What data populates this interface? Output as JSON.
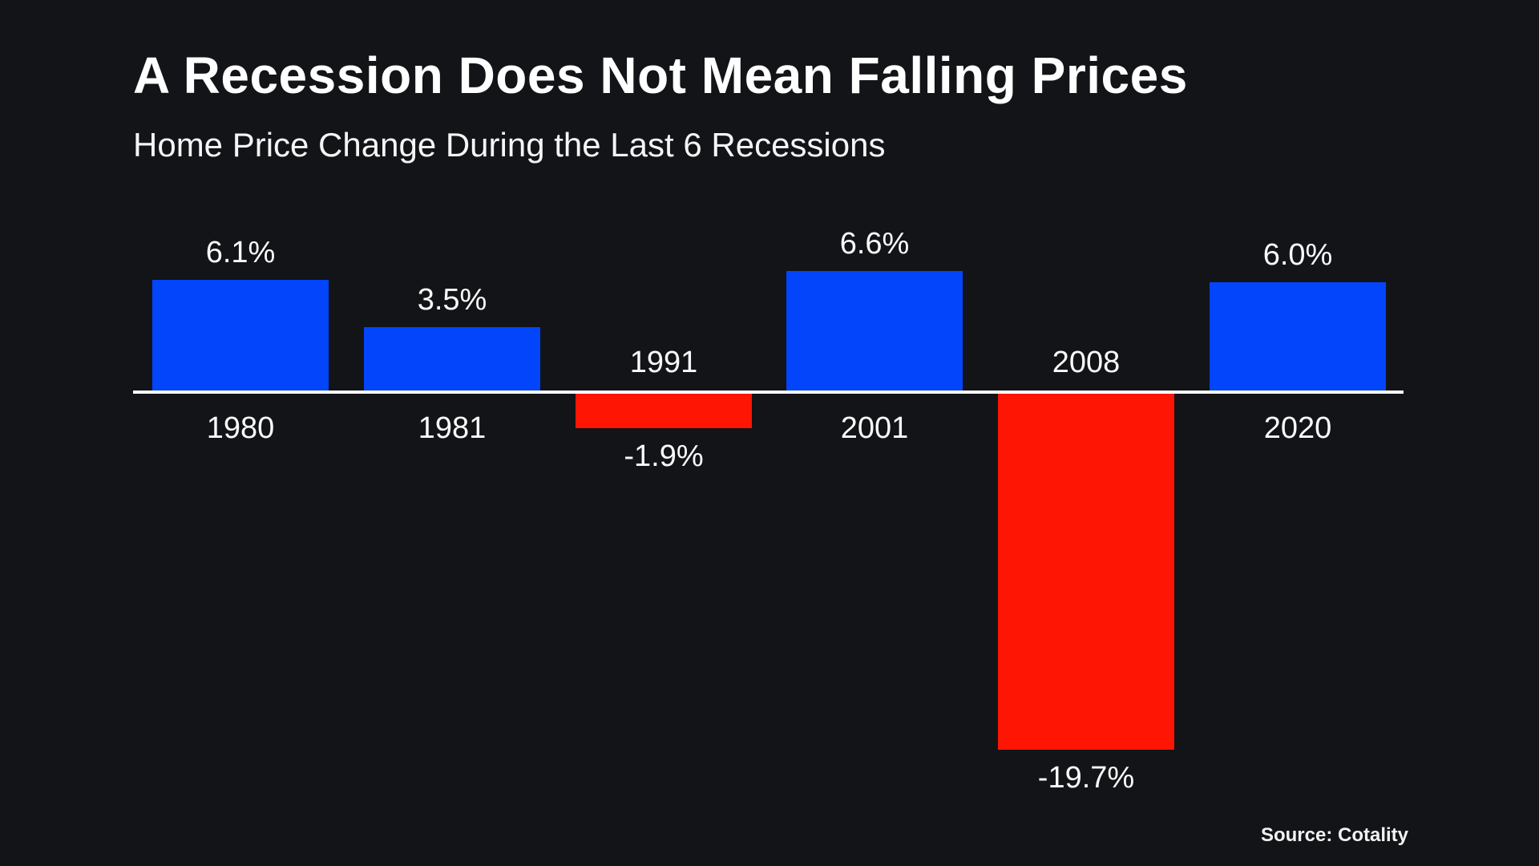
{
  "header": {
    "title": "A Recession Does Not Mean Falling Prices",
    "subtitle": "Home Price Change During the Last 6 Recessions"
  },
  "footer": {
    "source": "Source: Cotality"
  },
  "colors": {
    "background": "#121418",
    "positive_bar": "#0345fb",
    "negative_bar": "#fe1503",
    "axis": "#ffffff",
    "text": "#ffffff"
  },
  "chart_data": {
    "type": "bar",
    "title": "A Recession Does Not Mean Falling Prices",
    "subtitle": "Home Price Change During the Last 6 Recessions",
    "categories": [
      "1980",
      "1981",
      "1991",
      "2001",
      "2008",
      "2020"
    ],
    "values": [
      6.1,
      3.5,
      -1.9,
      6.6,
      -19.7,
      6.0
    ],
    "value_labels": [
      "6.1%",
      "3.5%",
      "-1.9%",
      "6.6%",
      "-19.7%",
      "6.0%"
    ],
    "unit": "%",
    "ylim": [
      -22,
      9
    ],
    "grid": false,
    "legend": false,
    "positive_color": "#0345fb",
    "negative_color": "#fe1503",
    "source": "Source: Cotality"
  }
}
